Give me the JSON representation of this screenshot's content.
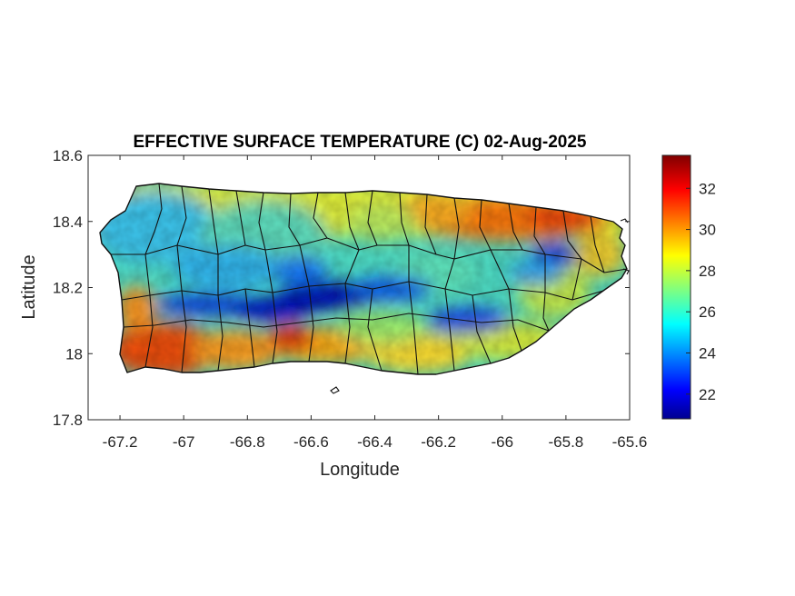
{
  "chart_data": {
    "type": "heatmap",
    "title": "EFFECTIVE SURFACE TEMPERATURE (C) 02-Aug-2025",
    "xlabel": "Longitude",
    "ylabel": "Latitude",
    "xlim": [
      -67.3,
      -65.6
    ],
    "ylim": [
      17.8,
      18.6
    ],
    "xticks": [
      -67.2,
      -67,
      -66.8,
      -66.6,
      -66.4,
      -66.2,
      -66,
      -65.8,
      -65.6
    ],
    "xtick_labels": [
      "-67.2",
      "-67",
      "-66.8",
      "-66.6",
      "-66.4",
      "-66.2",
      "-66",
      "-65.8",
      "-65.6"
    ],
    "yticks": [
      17.8,
      18,
      18.2,
      18.4,
      18.6
    ],
    "ytick_labels": [
      "17.8",
      "18",
      "18.2",
      "18.4",
      "18.6"
    ],
    "colorbar": {
      "colormap": "jet",
      "range": [
        20.8,
        33.6
      ],
      "ticks": [
        22,
        24,
        26,
        28,
        30,
        32
      ],
      "tick_labels": [
        "22",
        "24",
        "26",
        "28",
        "30",
        "32"
      ]
    },
    "grid": false,
    "region": "Puerto Rico",
    "outline_color": "#000000",
    "field_description_values": {
      "south_coast_approx_C": 31,
      "central_cordillera_approx_C": 22,
      "northeast_coast_approx_C": 31,
      "northwest_approx_C": 26
    }
  }
}
